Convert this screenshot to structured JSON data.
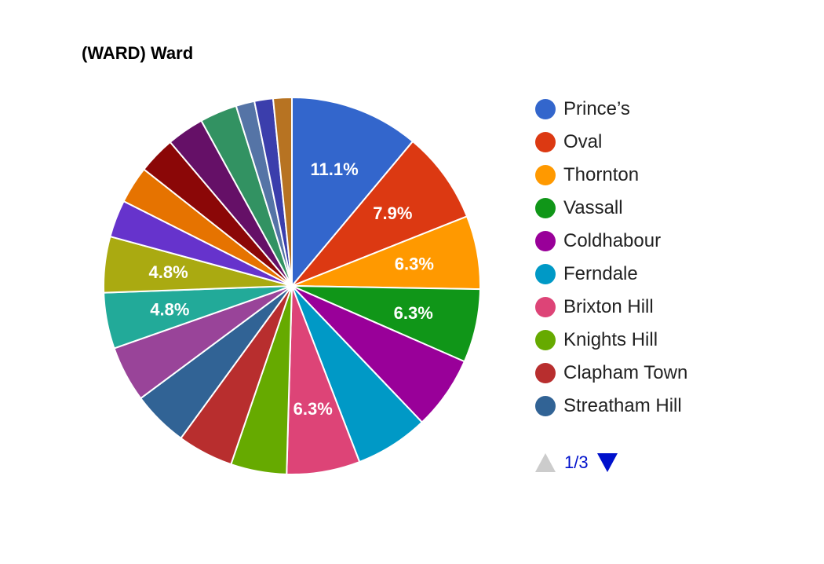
{
  "chart_data": {
    "type": "pie",
    "title": "(WARD) Ward",
    "slices": [
      {
        "label": "Prince’s",
        "value": 11.1,
        "color": "#3366cc",
        "data_label": "11.1%"
      },
      {
        "label": "Oval",
        "value": 7.9,
        "color": "#dc3912",
        "data_label": "7.9%"
      },
      {
        "label": "Thornton",
        "value": 6.3,
        "color": "#ff9900",
        "data_label": "6.3%"
      },
      {
        "label": "Vassall",
        "value": 6.3,
        "color": "#109618",
        "data_label": "6.3%"
      },
      {
        "label": "Coldhabour",
        "value": 6.3,
        "color": "#990099",
        "data_label": ""
      },
      {
        "label": "Ferndale",
        "value": 6.3,
        "color": "#0099c6",
        "data_label": ""
      },
      {
        "label": "Brixton Hill",
        "value": 6.3,
        "color": "#dd4477",
        "data_label": "6.3%"
      },
      {
        "label": "Knights Hill",
        "value": 4.8,
        "color": "#66aa00",
        "data_label": ""
      },
      {
        "label": "Clapham Town",
        "value": 4.8,
        "color": "#b82e2e",
        "data_label": ""
      },
      {
        "label": "Streatham Hill",
        "value": 4.8,
        "color": "#316395",
        "data_label": ""
      },
      {
        "label": "",
        "value": 4.8,
        "color": "#994499",
        "data_label": ""
      },
      {
        "label": "",
        "value": 4.8,
        "color": "#22aa99",
        "data_label": "4.8%"
      },
      {
        "label": "",
        "value": 4.8,
        "color": "#aaaa11",
        "data_label": "4.8%"
      },
      {
        "label": "",
        "value": 3.2,
        "color": "#6633cc",
        "data_label": ""
      },
      {
        "label": "",
        "value": 3.2,
        "color": "#e67300",
        "data_label": ""
      },
      {
        "label": "",
        "value": 3.2,
        "color": "#8b0707",
        "data_label": ""
      },
      {
        "label": "",
        "value": 3.2,
        "color": "#651067",
        "data_label": ""
      },
      {
        "label": "",
        "value": 3.2,
        "color": "#329262",
        "data_label": ""
      },
      {
        "label": "",
        "value": 1.6,
        "color": "#5574a6",
        "data_label": ""
      },
      {
        "label": "",
        "value": 1.6,
        "color": "#3b3eac",
        "data_label": ""
      },
      {
        "label": "",
        "value": 1.6,
        "color": "#b77322",
        "data_label": ""
      }
    ],
    "legend_position": "right"
  },
  "legend": {
    "items": [
      {
        "label": "Prince’s",
        "color": "#3366cc"
      },
      {
        "label": "Oval",
        "color": "#dc3912"
      },
      {
        "label": "Thornton",
        "color": "#ff9900"
      },
      {
        "label": "Vassall",
        "color": "#109618"
      },
      {
        "label": "Coldhabour",
        "color": "#990099"
      },
      {
        "label": "Ferndale",
        "color": "#0099c6"
      },
      {
        "label": "Brixton Hill",
        "color": "#dd4477"
      },
      {
        "label": "Knights Hill",
        "color": "#66aa00"
      },
      {
        "label": "Clapham Town",
        "color": "#b82e2e"
      },
      {
        "label": "Streatham Hill",
        "color": "#316395"
      }
    ]
  },
  "pager": {
    "text": "1/3"
  }
}
